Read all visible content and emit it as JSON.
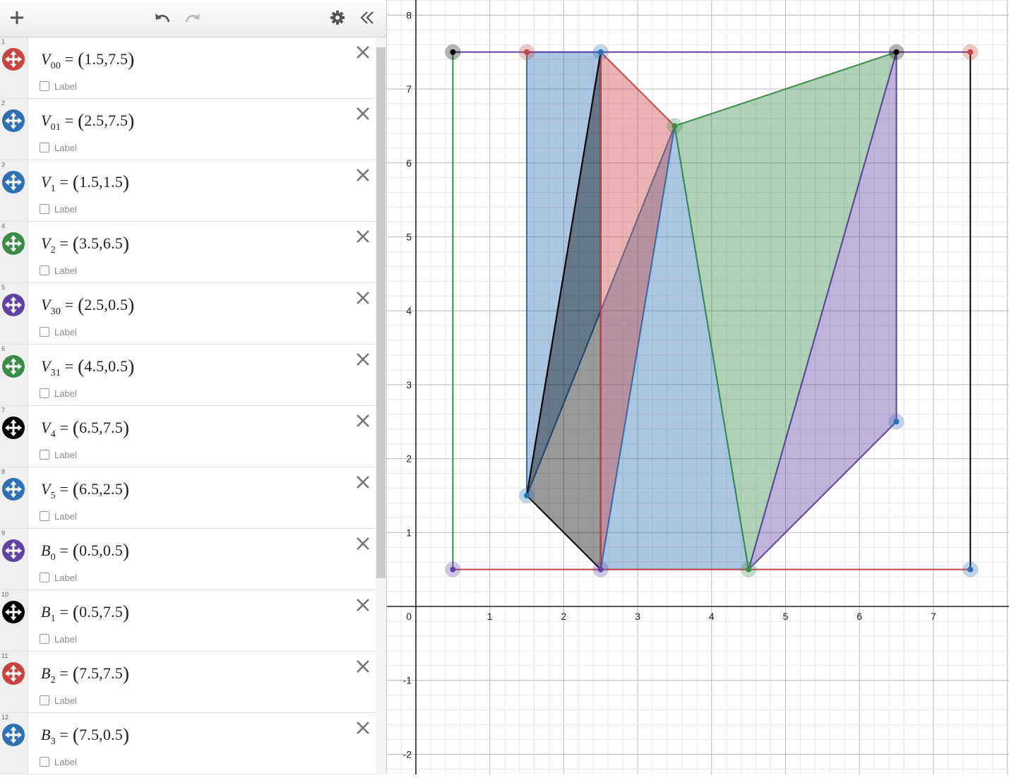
{
  "toolbar": {
    "add_icon": "plus-icon",
    "undo_icon": "undo-icon",
    "redo_icon": "redo-icon",
    "settings_icon": "gear-icon",
    "collapse_icon": "double-chevron-left-icon"
  },
  "expressions": [
    {
      "index": "1",
      "base": "V",
      "sub": "00",
      "x": "1.5",
      "y": "7.5",
      "color": "#c74440",
      "label": "Label"
    },
    {
      "index": "2",
      "base": "V",
      "sub": "01",
      "x": "2.5",
      "y": "7.5",
      "color": "#2d70b3",
      "label": "Label"
    },
    {
      "index": "3",
      "base": "V",
      "sub": "1",
      "x": "1.5",
      "y": "1.5",
      "color": "#2d70b3",
      "label": "Label"
    },
    {
      "index": "4",
      "base": "V",
      "sub": "2",
      "x": "3.5",
      "y": "6.5",
      "color": "#388c46",
      "label": "Label"
    },
    {
      "index": "5",
      "base": "V",
      "sub": "30",
      "x": "2.5",
      "y": "0.5",
      "color": "#6042a6",
      "label": "Label"
    },
    {
      "index": "6",
      "base": "V",
      "sub": "31",
      "x": "4.5",
      "y": "0.5",
      "color": "#388c46",
      "label": "Label"
    },
    {
      "index": "7",
      "base": "V",
      "sub": "4",
      "x": "6.5",
      "y": "7.5",
      "color": "#000000",
      "label": "Label"
    },
    {
      "index": "8",
      "base": "V",
      "sub": "5",
      "x": "6.5",
      "y": "2.5",
      "color": "#2d70b3",
      "label": "Label"
    },
    {
      "index": "9",
      "base": "B",
      "sub": "0",
      "x": "0.5",
      "y": "0.5",
      "color": "#6042a6",
      "label": "Label"
    },
    {
      "index": "10",
      "base": "B",
      "sub": "1",
      "x": "0.5",
      "y": "7.5",
      "color": "#000000",
      "label": "Label"
    },
    {
      "index": "11",
      "base": "B",
      "sub": "2",
      "x": "7.5",
      "y": "7.5",
      "color": "#c74440",
      "label": "Label"
    },
    {
      "index": "12",
      "base": "B",
      "sub": "3",
      "x": "7.5",
      "y": "0.5",
      "color": "#2d70b3",
      "label": "Label"
    }
  ],
  "graph": {
    "x_ticks": [
      "0",
      "1",
      "2",
      "3",
      "4",
      "5",
      "6",
      "7"
    ],
    "y_ticks": [
      "8",
      "7",
      "6",
      "5",
      "4",
      "3",
      "2",
      "1",
      "-1",
      "-2"
    ],
    "colors": {
      "red": "#c74440",
      "blue": "#2d70b3",
      "green": "#388c46",
      "purple": "#6042a6",
      "black": "#000000"
    }
  }
}
